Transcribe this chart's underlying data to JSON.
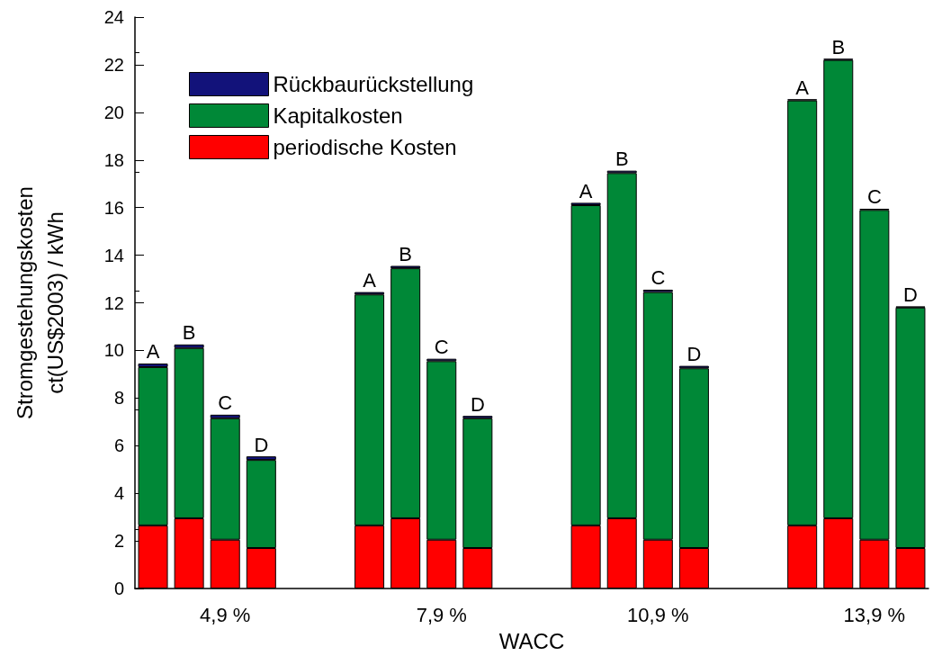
{
  "chart_data": {
    "type": "bar",
    "stacked": true,
    "xlabel": "WACC",
    "ylabel": "Stromgestehungskosten\nct(US$2003) / kWh",
    "categories": [
      "A",
      "B",
      "C",
      "D",
      null,
      null,
      "A",
      "B",
      "C",
      "D",
      null,
      null,
      "A",
      "B",
      "C",
      "D",
      null,
      null,
      "A",
      "B",
      "C",
      "D"
    ],
    "series": [
      {
        "name": "periodische Kosten",
        "color": "#ff0000",
        "values": [
          2.65,
          2.95,
          2.05,
          1.7,
          null,
          null,
          2.65,
          2.95,
          2.05,
          1.7,
          null,
          null,
          2.65,
          2.95,
          2.05,
          1.7,
          null,
          null,
          2.65,
          2.95,
          2.05,
          1.7
        ]
      },
      {
        "name": "Kapitalkosten",
        "color": "#008837",
        "values": [
          6.65,
          7.15,
          5.1,
          3.7,
          null,
          null,
          9.7,
          10.5,
          7.5,
          5.45,
          null,
          null,
          13.45,
          14.5,
          10.4,
          7.55,
          null,
          null,
          17.85,
          19.25,
          13.85,
          10.1
        ]
      },
      {
        "name": "Rückbaurückstellung",
        "color": "#12127a",
        "values": [
          0.15,
          0.15,
          0.15,
          0.15,
          null,
          null,
          0.1,
          0.1,
          0.1,
          0.1,
          null,
          null,
          0.1,
          0.1,
          0.1,
          0.1,
          null,
          null,
          0.05,
          0.05,
          0.05,
          0.05
        ]
      }
    ],
    "annotations": [
      "4,9 %",
      "7,9 %",
      "10,9 %",
      "13,9 %"
    ],
    "ylim": [
      0,
      24
    ],
    "yticks": [
      0,
      2,
      4,
      6,
      8,
      10,
      12,
      14,
      16,
      18,
      20,
      22,
      24
    ],
    "grid": false,
    "legend": "top left"
  }
}
